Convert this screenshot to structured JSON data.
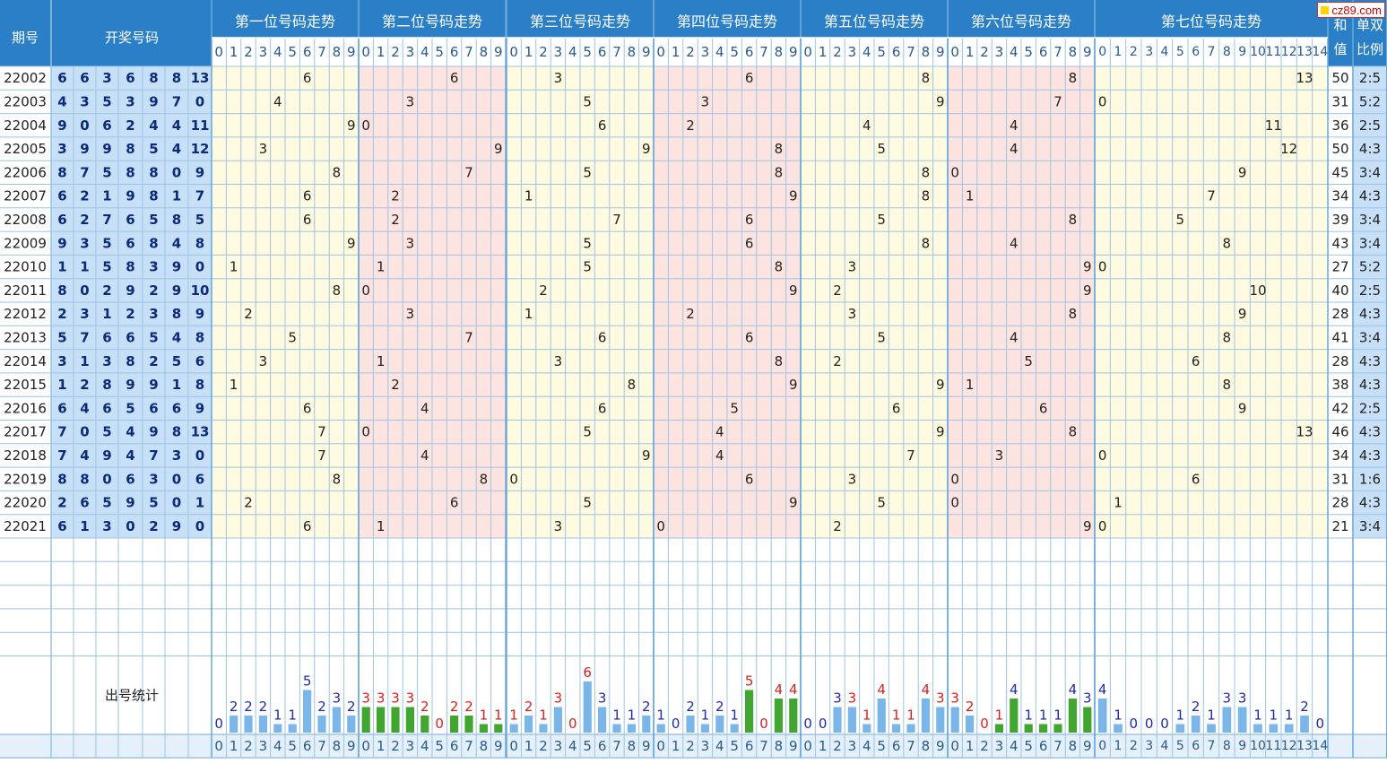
{
  "header": {
    "issue_label": "期号",
    "draw_label": "开奖号码",
    "positions": [
      "第一位号码走势",
      "第二位号码走势",
      "第三位号码走势",
      "第四位号码走势",
      "第五位号码走势",
      "第六位号码走势",
      "第七位号码走势"
    ],
    "sum_label": [
      "和",
      "值"
    ],
    "ratio_label": [
      "单双",
      "比例"
    ],
    "stats_label": "出号统计"
  },
  "watermark": "cz89.com",
  "colors": {
    "header_blue": "#2a7fc6",
    "draw_bg": "#c7e0f8",
    "draw_text": "#0a2a7a",
    "zone_yellow": "#fffbe0",
    "zone_pink": "#fde4e1",
    "grid_line": "#9ec4e4",
    "bar_blue": "#7ab6ea",
    "bar_green": "#41a630",
    "count_blue": "#1f2aa8",
    "count_red": "#d62020"
  },
  "chart_data": {
    "type": "table",
    "rows": [
      {
        "issue": "22002",
        "numbers": [
          6,
          6,
          3,
          6,
          8,
          8,
          13
        ],
        "sum": "50",
        "ratio": "2:5"
      },
      {
        "issue": "22003",
        "numbers": [
          4,
          3,
          5,
          3,
          9,
          7,
          0
        ],
        "sum": "31",
        "ratio": "5:2"
      },
      {
        "issue": "22004",
        "numbers": [
          9,
          0,
          6,
          2,
          4,
          4,
          11
        ],
        "sum": "36",
        "ratio": "2:5"
      },
      {
        "issue": "22005",
        "numbers": [
          3,
          9,
          9,
          8,
          5,
          4,
          12
        ],
        "sum": "50",
        "ratio": "4:3"
      },
      {
        "issue": "22006",
        "numbers": [
          8,
          7,
          5,
          8,
          8,
          0,
          9
        ],
        "sum": "45",
        "ratio": "3:4"
      },
      {
        "issue": "22007",
        "numbers": [
          6,
          2,
          1,
          9,
          8,
          1,
          7
        ],
        "sum": "34",
        "ratio": "4:3"
      },
      {
        "issue": "22008",
        "numbers": [
          6,
          2,
          7,
          6,
          5,
          8,
          5
        ],
        "sum": "39",
        "ratio": "3:4"
      },
      {
        "issue": "22009",
        "numbers": [
          9,
          3,
          5,
          6,
          8,
          4,
          8
        ],
        "sum": "43",
        "ratio": "3:4"
      },
      {
        "issue": "22010",
        "numbers": [
          1,
          1,
          5,
          8,
          3,
          9,
          0
        ],
        "sum": "27",
        "ratio": "5:2"
      },
      {
        "issue": "22011",
        "numbers": [
          8,
          0,
          2,
          9,
          2,
          9,
          10
        ],
        "sum": "40",
        "ratio": "2:5"
      },
      {
        "issue": "22012",
        "numbers": [
          2,
          3,
          1,
          2,
          3,
          8,
          9
        ],
        "sum": "28",
        "ratio": "4:3"
      },
      {
        "issue": "22013",
        "numbers": [
          5,
          7,
          6,
          6,
          5,
          4,
          8
        ],
        "sum": "41",
        "ratio": "3:4"
      },
      {
        "issue": "22014",
        "numbers": [
          3,
          1,
          3,
          8,
          2,
          5,
          6
        ],
        "sum": "28",
        "ratio": "4:3"
      },
      {
        "issue": "22015",
        "numbers": [
          1,
          2,
          8,
          9,
          9,
          1,
          8
        ],
        "sum": "38",
        "ratio": "4:3"
      },
      {
        "issue": "22016",
        "numbers": [
          6,
          4,
          6,
          5,
          6,
          6,
          9
        ],
        "sum": "42",
        "ratio": "2:5"
      },
      {
        "issue": "22017",
        "numbers": [
          7,
          0,
          5,
          4,
          9,
          8,
          13
        ],
        "sum": "46",
        "ratio": "4:3"
      },
      {
        "issue": "22018",
        "numbers": [
          7,
          4,
          9,
          4,
          7,
          3,
          0
        ],
        "sum": "34",
        "ratio": "4:3"
      },
      {
        "issue": "22019",
        "numbers": [
          8,
          8,
          0,
          6,
          3,
          0,
          6
        ],
        "sum": "31",
        "ratio": "1:6"
      },
      {
        "issue": "22020",
        "numbers": [
          2,
          6,
          5,
          9,
          5,
          0,
          1
        ],
        "sum": "28",
        "ratio": "4:3"
      },
      {
        "issue": "22021",
        "numbers": [
          6,
          1,
          3,
          0,
          2,
          9,
          0
        ],
        "sum": "21",
        "ratio": "3:4"
      }
    ],
    "stats": [
      [
        0,
        2,
        2,
        2,
        1,
        1,
        5,
        2,
        3,
        2
      ],
      [
        3,
        3,
        3,
        3,
        2,
        0,
        2,
        2,
        1,
        1
      ],
      [
        1,
        2,
        1,
        3,
        0,
        6,
        3,
        1,
        1,
        2
      ],
      [
        1,
        0,
        2,
        1,
        2,
        1,
        5,
        0,
        4,
        4
      ],
      [
        0,
        0,
        3,
        3,
        1,
        4,
        1,
        1,
        4,
        3
      ],
      [
        3,
        2,
        0,
        1,
        4,
        1,
        1,
        1,
        4,
        3
      ],
      [
        4,
        1,
        0,
        0,
        0,
        1,
        2,
        1,
        3,
        3,
        1,
        1,
        1,
        2,
        0
      ]
    ]
  }
}
